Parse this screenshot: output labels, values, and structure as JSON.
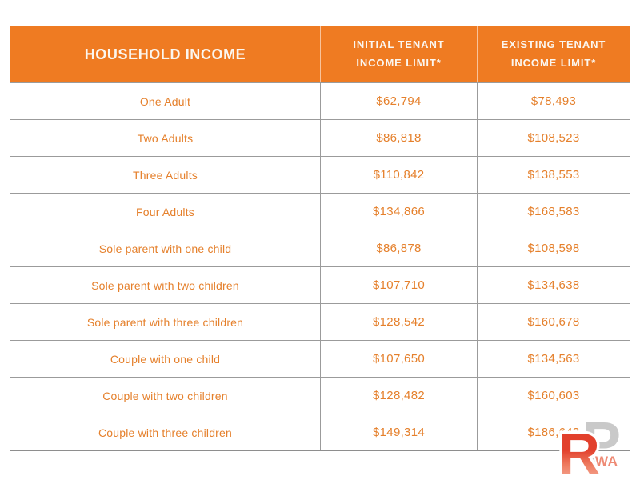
{
  "table": {
    "header": {
      "household": "HOUSEHOLD INCOME",
      "initial": "INITIAL TENANT\nINCOME LIMIT*",
      "existing": "EXISTING TENANT\nINCOME LIMIT*"
    },
    "rows": [
      {
        "household": "One Adult",
        "initial": "$62,794",
        "existing": "$78,493"
      },
      {
        "household": "Two Adults",
        "initial": "$86,818",
        "existing": "$108,523"
      },
      {
        "household": "Three Adults",
        "initial": "$110,842",
        "existing": "$138,553"
      },
      {
        "household": "Four Adults",
        "initial": "$134,866",
        "existing": "$168,583"
      },
      {
        "household": "Sole parent with one child",
        "initial": "$86,878",
        "existing": "$108,598"
      },
      {
        "household": "Sole parent with two children",
        "initial": "$107,710",
        "existing": "$134,638"
      },
      {
        "household": "Sole parent with three children",
        "initial": "$128,542",
        "existing": "$160,678"
      },
      {
        "household": "Couple with one child",
        "initial": "$107,650",
        "existing": "$134,563"
      },
      {
        "household": "Couple with two children",
        "initial": "$128,482",
        "existing": "$160,603"
      },
      {
        "household": "Couple with three children",
        "initial": "$149,314",
        "existing": "$186,643"
      }
    ]
  },
  "watermark": {
    "r": "R",
    "p": "P",
    "wa": "WA"
  },
  "colors": {
    "header_bg": "#EF7B22",
    "header_text": "#FBF6EF",
    "body_text": "#E5802C",
    "border_outer": "#8E8E8E",
    "border_inner": "#9B9B9B",
    "logo_red": "#E2402C",
    "logo_gray": "#C9C9C9",
    "logo_wa": "#EE8A74"
  },
  "chart_data": {
    "type": "table",
    "title": "",
    "columns": [
      "HOUSEHOLD INCOME",
      "INITIAL TENANT INCOME LIMIT*",
      "EXISTING TENANT INCOME LIMIT*"
    ],
    "rows": [
      [
        "One Adult",
        62794,
        78493
      ],
      [
        "Two Adults",
        86818,
        108523
      ],
      [
        "Three Adults",
        110842,
        138553
      ],
      [
        "Four Adults",
        134866,
        168583
      ],
      [
        "Sole parent with one child",
        86878,
        108598
      ],
      [
        "Sole parent with two children",
        107710,
        134638
      ],
      [
        "Sole parent with three children",
        128542,
        160678
      ],
      [
        "Couple with one child",
        107650,
        134563
      ],
      [
        "Couple with two children",
        128482,
        160603
      ],
      [
        "Couple with three children",
        149314,
        186643
      ]
    ]
  }
}
